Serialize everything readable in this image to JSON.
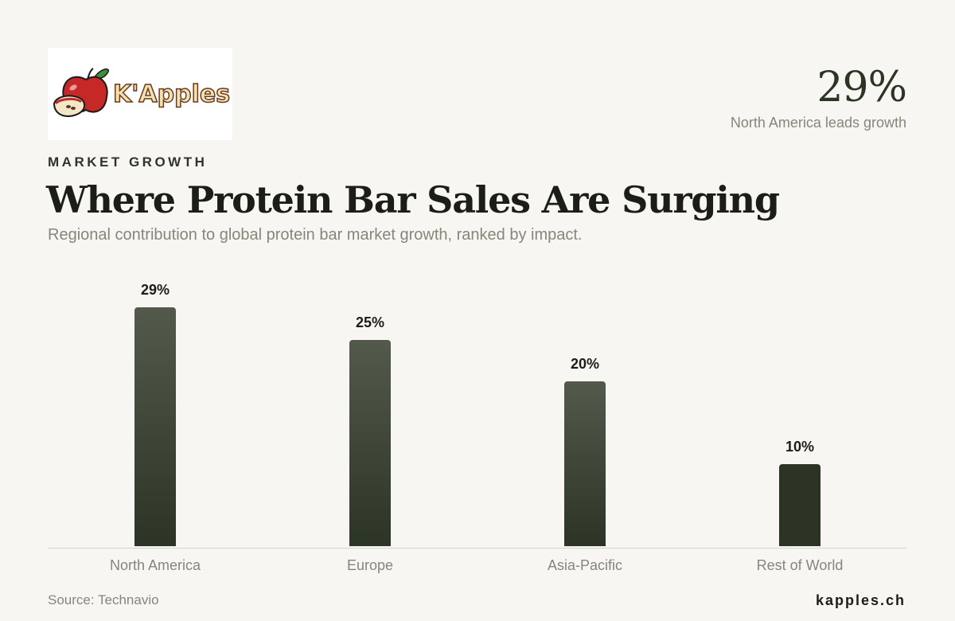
{
  "brand": {
    "logo_text": "K'Apples",
    "site": "kapples.ch"
  },
  "kpi": {
    "value": "29%",
    "label": "North America leads growth"
  },
  "header": {
    "eyebrow": "MARKET GROWTH",
    "title": "Where Protein Bar Sales Are Surging",
    "subtitle": "Regional contribution to global protein bar market growth, ranked by impact."
  },
  "footer": {
    "source": "Source: Technavio"
  },
  "colors": {
    "background": "#f8f6f2",
    "bar": "#2c3426",
    "muted_text": "#8a847a",
    "accent_red": "#c62828"
  },
  "chart_data": {
    "type": "bar",
    "categories": [
      "North America",
      "Europe",
      "Asia-Pacific",
      "Rest of World"
    ],
    "values": [
      29,
      25,
      20,
      10
    ],
    "value_labels": [
      "29%",
      "25%",
      "20%",
      "10%"
    ],
    "ylim": [
      0,
      29
    ],
    "grid": false,
    "legend": "none"
  }
}
